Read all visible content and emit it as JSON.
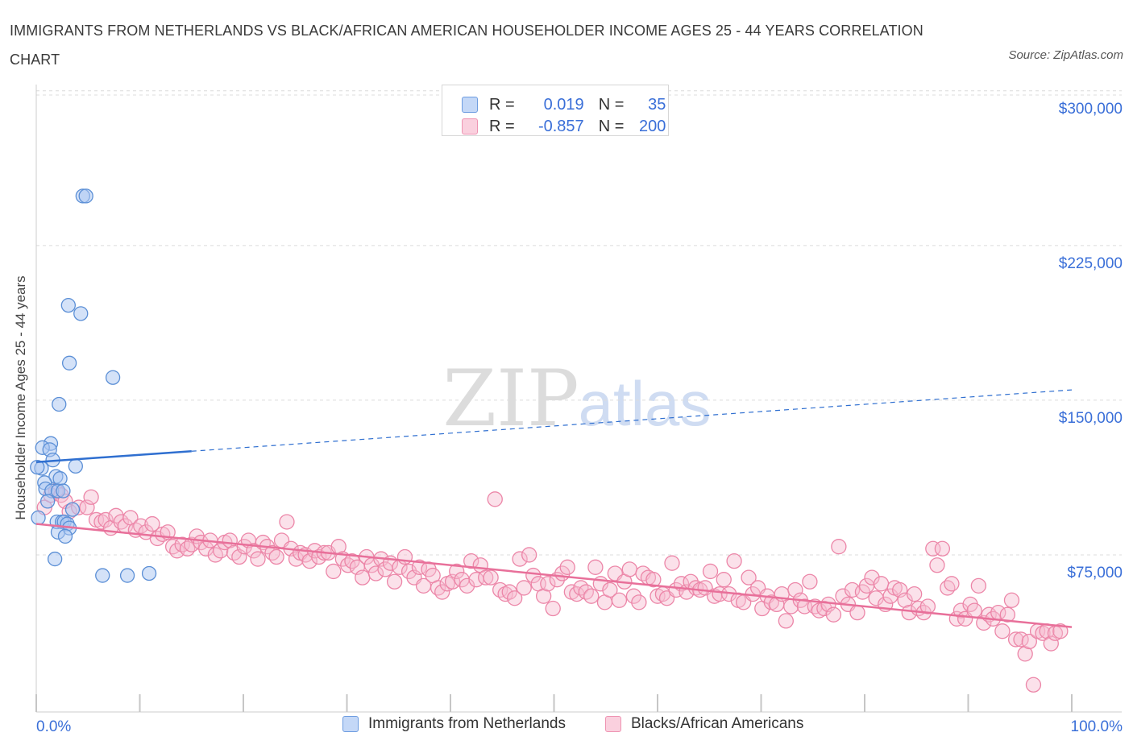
{
  "title": "IMMIGRANTS FROM NETHERLANDS VS BLACK/AFRICAN AMERICAN HOUSEHOLDER INCOME AGES 25 - 44 YEARS CORRELATION CHART",
  "source": "Source: ZipAtlas.com",
  "watermark": {
    "zip": "ZIP",
    "atlas": "atlas"
  },
  "legend": {
    "r_label": "R =",
    "n_label": "N =",
    "rows": [
      {
        "r": "0.019",
        "n": "35"
      },
      {
        "r": "-0.857",
        "n": "200"
      }
    ]
  },
  "bottom_legend": [
    "Immigrants from Netherlands",
    "Blacks/African Americans"
  ],
  "colors": {
    "blue_fill": "#a9c6f2",
    "blue_stroke": "#5b8fd6",
    "blue_line": "#2f6fd0",
    "pink_fill": "#f7bcd0",
    "pink_stroke": "#ec86a8",
    "pink_line": "#e8709a",
    "axis_label": "#3a6fd8",
    "grid": "#dcdcdc"
  },
  "chart_data": {
    "type": "scatter",
    "xlabel": "",
    "ylabel": "Householder Income Ages 25 - 44 years",
    "x_tick_labels": [
      "0.0%",
      "100.0%"
    ],
    "y_ticks": [
      75000,
      150000,
      225000,
      300000
    ],
    "y_tick_labels": [
      "$75,000",
      "$150,000",
      "$225,000",
      "$300,000"
    ],
    "xlim": [
      0,
      100
    ],
    "ylim": [
      0,
      305000
    ],
    "grid": "horizontal dashed",
    "series": [
      {
        "name": "Immigrants from Netherlands",
        "color": "blue",
        "trend": {
          "x0": 0,
          "y0": 120000,
          "x_solid_end": 15,
          "x1": 100,
          "y1": 155000
        },
        "points": [
          [
            4.5,
            249000
          ],
          [
            4.8,
            249000
          ],
          [
            3.1,
            196000
          ],
          [
            4.3,
            192000
          ],
          [
            3.2,
            168000
          ],
          [
            7.4,
            161000
          ],
          [
            2.2,
            148000
          ],
          [
            1.4,
            129000
          ],
          [
            0.6,
            127000
          ],
          [
            1.3,
            126000
          ],
          [
            1.6,
            121000
          ],
          [
            3.8,
            118000
          ],
          [
            0.5,
            117000
          ],
          [
            1.9,
            113000
          ],
          [
            2.3,
            112000
          ],
          [
            0.8,
            110000
          ],
          [
            0.9,
            107000
          ],
          [
            1.5,
            106000
          ],
          [
            2.1,
            106000
          ],
          [
            2.6,
            106000
          ],
          [
            1.1,
            101000
          ],
          [
            3.5,
            97000
          ],
          [
            0.2,
            93000
          ],
          [
            2.0,
            91000
          ],
          [
            2.5,
            91000
          ],
          [
            2.7,
            91000
          ],
          [
            3.0,
            90000
          ],
          [
            3.2,
            88000
          ],
          [
            2.1,
            86000
          ],
          [
            2.8,
            84000
          ],
          [
            1.8,
            73000
          ],
          [
            6.4,
            65000
          ],
          [
            8.8,
            65000
          ],
          [
            10.9,
            66000
          ],
          [
            0.1,
            117500
          ]
        ]
      },
      {
        "name": "Blacks/African Americans",
        "color": "pink",
        "trend": {
          "x0": 0,
          "y0": 90000,
          "x1": 100,
          "y1": 40000
        },
        "points": [
          [
            0.8,
            98000
          ],
          [
            1.4,
            104000
          ],
          [
            1.9,
            106000
          ],
          [
            2.4,
            104000
          ],
          [
            2.8,
            101000
          ],
          [
            3.2,
            96000
          ],
          [
            4.1,
            98000
          ],
          [
            4.9,
            98000
          ],
          [
            5.3,
            103000
          ],
          [
            5.8,
            92000
          ],
          [
            6.3,
            91000
          ],
          [
            6.7,
            92000
          ],
          [
            7.2,
            88000
          ],
          [
            7.7,
            94000
          ],
          [
            8.2,
            91000
          ],
          [
            8.6,
            89000
          ],
          [
            9.1,
            93000
          ],
          [
            9.6,
            87000
          ],
          [
            10.1,
            89000
          ],
          [
            10.6,
            86000
          ],
          [
            11.2,
            90000
          ],
          [
            11.7,
            83000
          ],
          [
            12.2,
            85000
          ],
          [
            12.7,
            86000
          ],
          [
            13.2,
            79000
          ],
          [
            13.6,
            77000
          ],
          [
            14.1,
            80000
          ],
          [
            14.6,
            78000
          ],
          [
            15.0,
            80000
          ],
          [
            15.5,
            84000
          ],
          [
            15.9,
            81000
          ],
          [
            16.4,
            78000
          ],
          [
            16.8,
            82000
          ],
          [
            17.3,
            75000
          ],
          [
            17.8,
            77000
          ],
          [
            18.2,
            81000
          ],
          [
            18.7,
            82000
          ],
          [
            19.1,
            76000
          ],
          [
            19.6,
            74000
          ],
          [
            20.1,
            79000
          ],
          [
            20.5,
            82000
          ],
          [
            21.0,
            77000
          ],
          [
            21.4,
            73000
          ],
          [
            21.9,
            81000
          ],
          [
            22.3,
            79000
          ],
          [
            22.8,
            76000
          ],
          [
            23.2,
            74000
          ],
          [
            23.7,
            82000
          ],
          [
            24.2,
            91000
          ],
          [
            24.6,
            78000
          ],
          [
            25.1,
            73000
          ],
          [
            25.5,
            76000
          ],
          [
            26.0,
            75000
          ],
          [
            26.4,
            72000
          ],
          [
            26.9,
            77000
          ],
          [
            27.3,
            74000
          ],
          [
            27.8,
            76000
          ],
          [
            28.2,
            76000
          ],
          [
            28.7,
            67000
          ],
          [
            29.2,
            79000
          ],
          [
            29.6,
            73000
          ],
          [
            30.1,
            70000
          ],
          [
            30.5,
            72000
          ],
          [
            31.0,
            69000
          ],
          [
            31.5,
            64000
          ],
          [
            31.9,
            74000
          ],
          [
            32.4,
            70000
          ],
          [
            32.8,
            66000
          ],
          [
            33.3,
            73000
          ],
          [
            33.7,
            68000
          ],
          [
            34.2,
            71000
          ],
          [
            34.6,
            62000
          ],
          [
            35.1,
            69000
          ],
          [
            35.6,
            74000
          ],
          [
            36.0,
            67000
          ],
          [
            36.5,
            64000
          ],
          [
            37.0,
            69000
          ],
          [
            37.4,
            60000
          ],
          [
            37.9,
            68000
          ],
          [
            38.3,
            65000
          ],
          [
            38.8,
            59000
          ],
          [
            39.2,
            57000
          ],
          [
            39.7,
            61000
          ],
          [
            40.2,
            62000
          ],
          [
            40.6,
            67000
          ],
          [
            41.1,
            63000
          ],
          [
            41.6,
            60000
          ],
          [
            42.0,
            72000
          ],
          [
            42.5,
            63000
          ],
          [
            42.9,
            70000
          ],
          [
            43.4,
            64000
          ],
          [
            43.9,
            64000
          ],
          [
            44.3,
            102000
          ],
          [
            44.8,
            58000
          ],
          [
            45.3,
            56000
          ],
          [
            45.7,
            57000
          ],
          [
            46.2,
            54000
          ],
          [
            46.7,
            73000
          ],
          [
            47.1,
            59000
          ],
          [
            47.6,
            75000
          ],
          [
            48.0,
            65000
          ],
          [
            48.5,
            61000
          ],
          [
            49.0,
            55000
          ],
          [
            49.4,
            61000
          ],
          [
            49.9,
            49000
          ],
          [
            50.3,
            63000
          ],
          [
            50.8,
            66000
          ],
          [
            51.3,
            69000
          ],
          [
            51.7,
            57000
          ],
          [
            52.2,
            56000
          ],
          [
            52.6,
            59000
          ],
          [
            53.1,
            57000
          ],
          [
            53.6,
            55000
          ],
          [
            54.0,
            69000
          ],
          [
            54.5,
            61000
          ],
          [
            54.9,
            52000
          ],
          [
            55.4,
            58000
          ],
          [
            55.9,
            66000
          ],
          [
            56.3,
            53000
          ],
          [
            56.8,
            62000
          ],
          [
            57.3,
            68000
          ],
          [
            57.7,
            55000
          ],
          [
            58.2,
            52000
          ],
          [
            58.6,
            66000
          ],
          [
            59.1,
            64000
          ],
          [
            59.6,
            63000
          ],
          [
            60.0,
            55000
          ],
          [
            60.5,
            56000
          ],
          [
            60.9,
            54000
          ],
          [
            61.4,
            71000
          ],
          [
            61.8,
            58000
          ],
          [
            62.3,
            61000
          ],
          [
            62.8,
            57000
          ],
          [
            63.2,
            62000
          ],
          [
            63.7,
            59000
          ],
          [
            64.1,
            58000
          ],
          [
            64.6,
            59000
          ],
          [
            65.1,
            67000
          ],
          [
            65.5,
            55000
          ],
          [
            66.0,
            56000
          ],
          [
            66.4,
            63000
          ],
          [
            66.9,
            56000
          ],
          [
            67.4,
            72000
          ],
          [
            67.8,
            53000
          ],
          [
            68.3,
            52000
          ],
          [
            68.8,
            64000
          ],
          [
            69.2,
            56000
          ],
          [
            69.7,
            59000
          ],
          [
            70.1,
            49000
          ],
          [
            70.6,
            55000
          ],
          [
            71.0,
            52000
          ],
          [
            71.5,
            51000
          ],
          [
            72.0,
            56000
          ],
          [
            72.4,
            43000
          ],
          [
            72.9,
            50000
          ],
          [
            73.3,
            58000
          ],
          [
            73.8,
            53000
          ],
          [
            74.2,
            50000
          ],
          [
            74.7,
            62000
          ],
          [
            75.2,
            50000
          ],
          [
            75.6,
            48000
          ],
          [
            76.1,
            49000
          ],
          [
            76.5,
            51000
          ],
          [
            77.0,
            46000
          ],
          [
            77.5,
            79000
          ],
          [
            77.9,
            55000
          ],
          [
            78.4,
            51000
          ],
          [
            78.8,
            58000
          ],
          [
            79.3,
            47000
          ],
          [
            79.8,
            57000
          ],
          [
            80.2,
            60000
          ],
          [
            80.7,
            64000
          ],
          [
            81.1,
            54000
          ],
          [
            81.6,
            61000
          ],
          [
            82.0,
            51000
          ],
          [
            82.5,
            55000
          ],
          [
            82.9,
            59000
          ],
          [
            83.4,
            58000
          ],
          [
            83.9,
            53000
          ],
          [
            84.3,
            47000
          ],
          [
            84.8,
            56000
          ],
          [
            85.2,
            49000
          ],
          [
            85.7,
            47000
          ],
          [
            86.1,
            50000
          ],
          [
            86.6,
            78000
          ],
          [
            87.0,
            70000
          ],
          [
            87.5,
            78000
          ],
          [
            88.0,
            59000
          ],
          [
            88.4,
            61000
          ],
          [
            88.9,
            44000
          ],
          [
            89.3,
            48000
          ],
          [
            89.7,
            44000
          ],
          [
            90.2,
            51000
          ],
          [
            90.6,
            48000
          ],
          [
            91.0,
            60000
          ],
          [
            91.5,
            42000
          ],
          [
            92.0,
            46000
          ],
          [
            92.4,
            44000
          ],
          [
            92.9,
            47000
          ],
          [
            93.3,
            38000
          ],
          [
            93.8,
            46000
          ],
          [
            94.2,
            53000
          ],
          [
            94.6,
            34000
          ],
          [
            95.1,
            34000
          ],
          [
            95.5,
            27000
          ],
          [
            95.9,
            33000
          ],
          [
            96.3,
            12000
          ],
          [
            96.7,
            38000
          ],
          [
            97.2,
            37000
          ],
          [
            97.6,
            38000
          ],
          [
            98.0,
            32000
          ],
          [
            98.4,
            37000
          ],
          [
            98.9,
            38000
          ]
        ]
      }
    ]
  }
}
